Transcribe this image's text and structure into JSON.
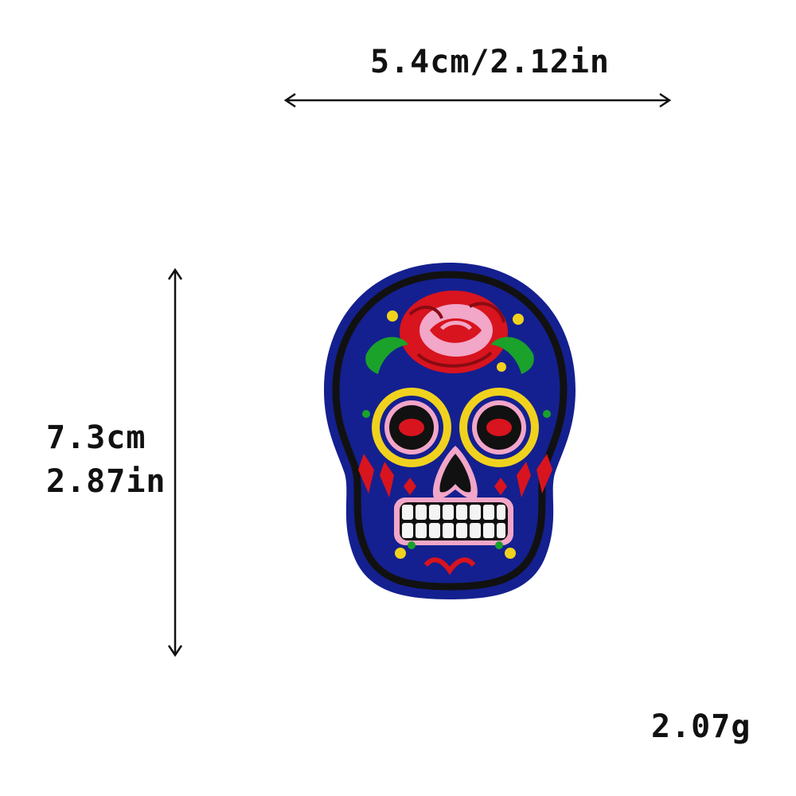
{
  "width_dimension": "5.4cm/2.12in",
  "height_dimension": {
    "cm": "7.3cm",
    "in": "2.87in"
  },
  "weight": "2.07g",
  "colors": {
    "felt_blue": "#14208f",
    "outline_black": "#111111",
    "rose_red": "#d8141e",
    "rose_pink": "#f2a6c8",
    "eye_yellow": "#f0d21e",
    "leaf_green": "#1aa22a",
    "teeth_white": "#f4f4f4"
  },
  "icons": [
    "horizontal-double-arrow",
    "vertical-double-arrow",
    "sugar-skull-patch"
  ]
}
